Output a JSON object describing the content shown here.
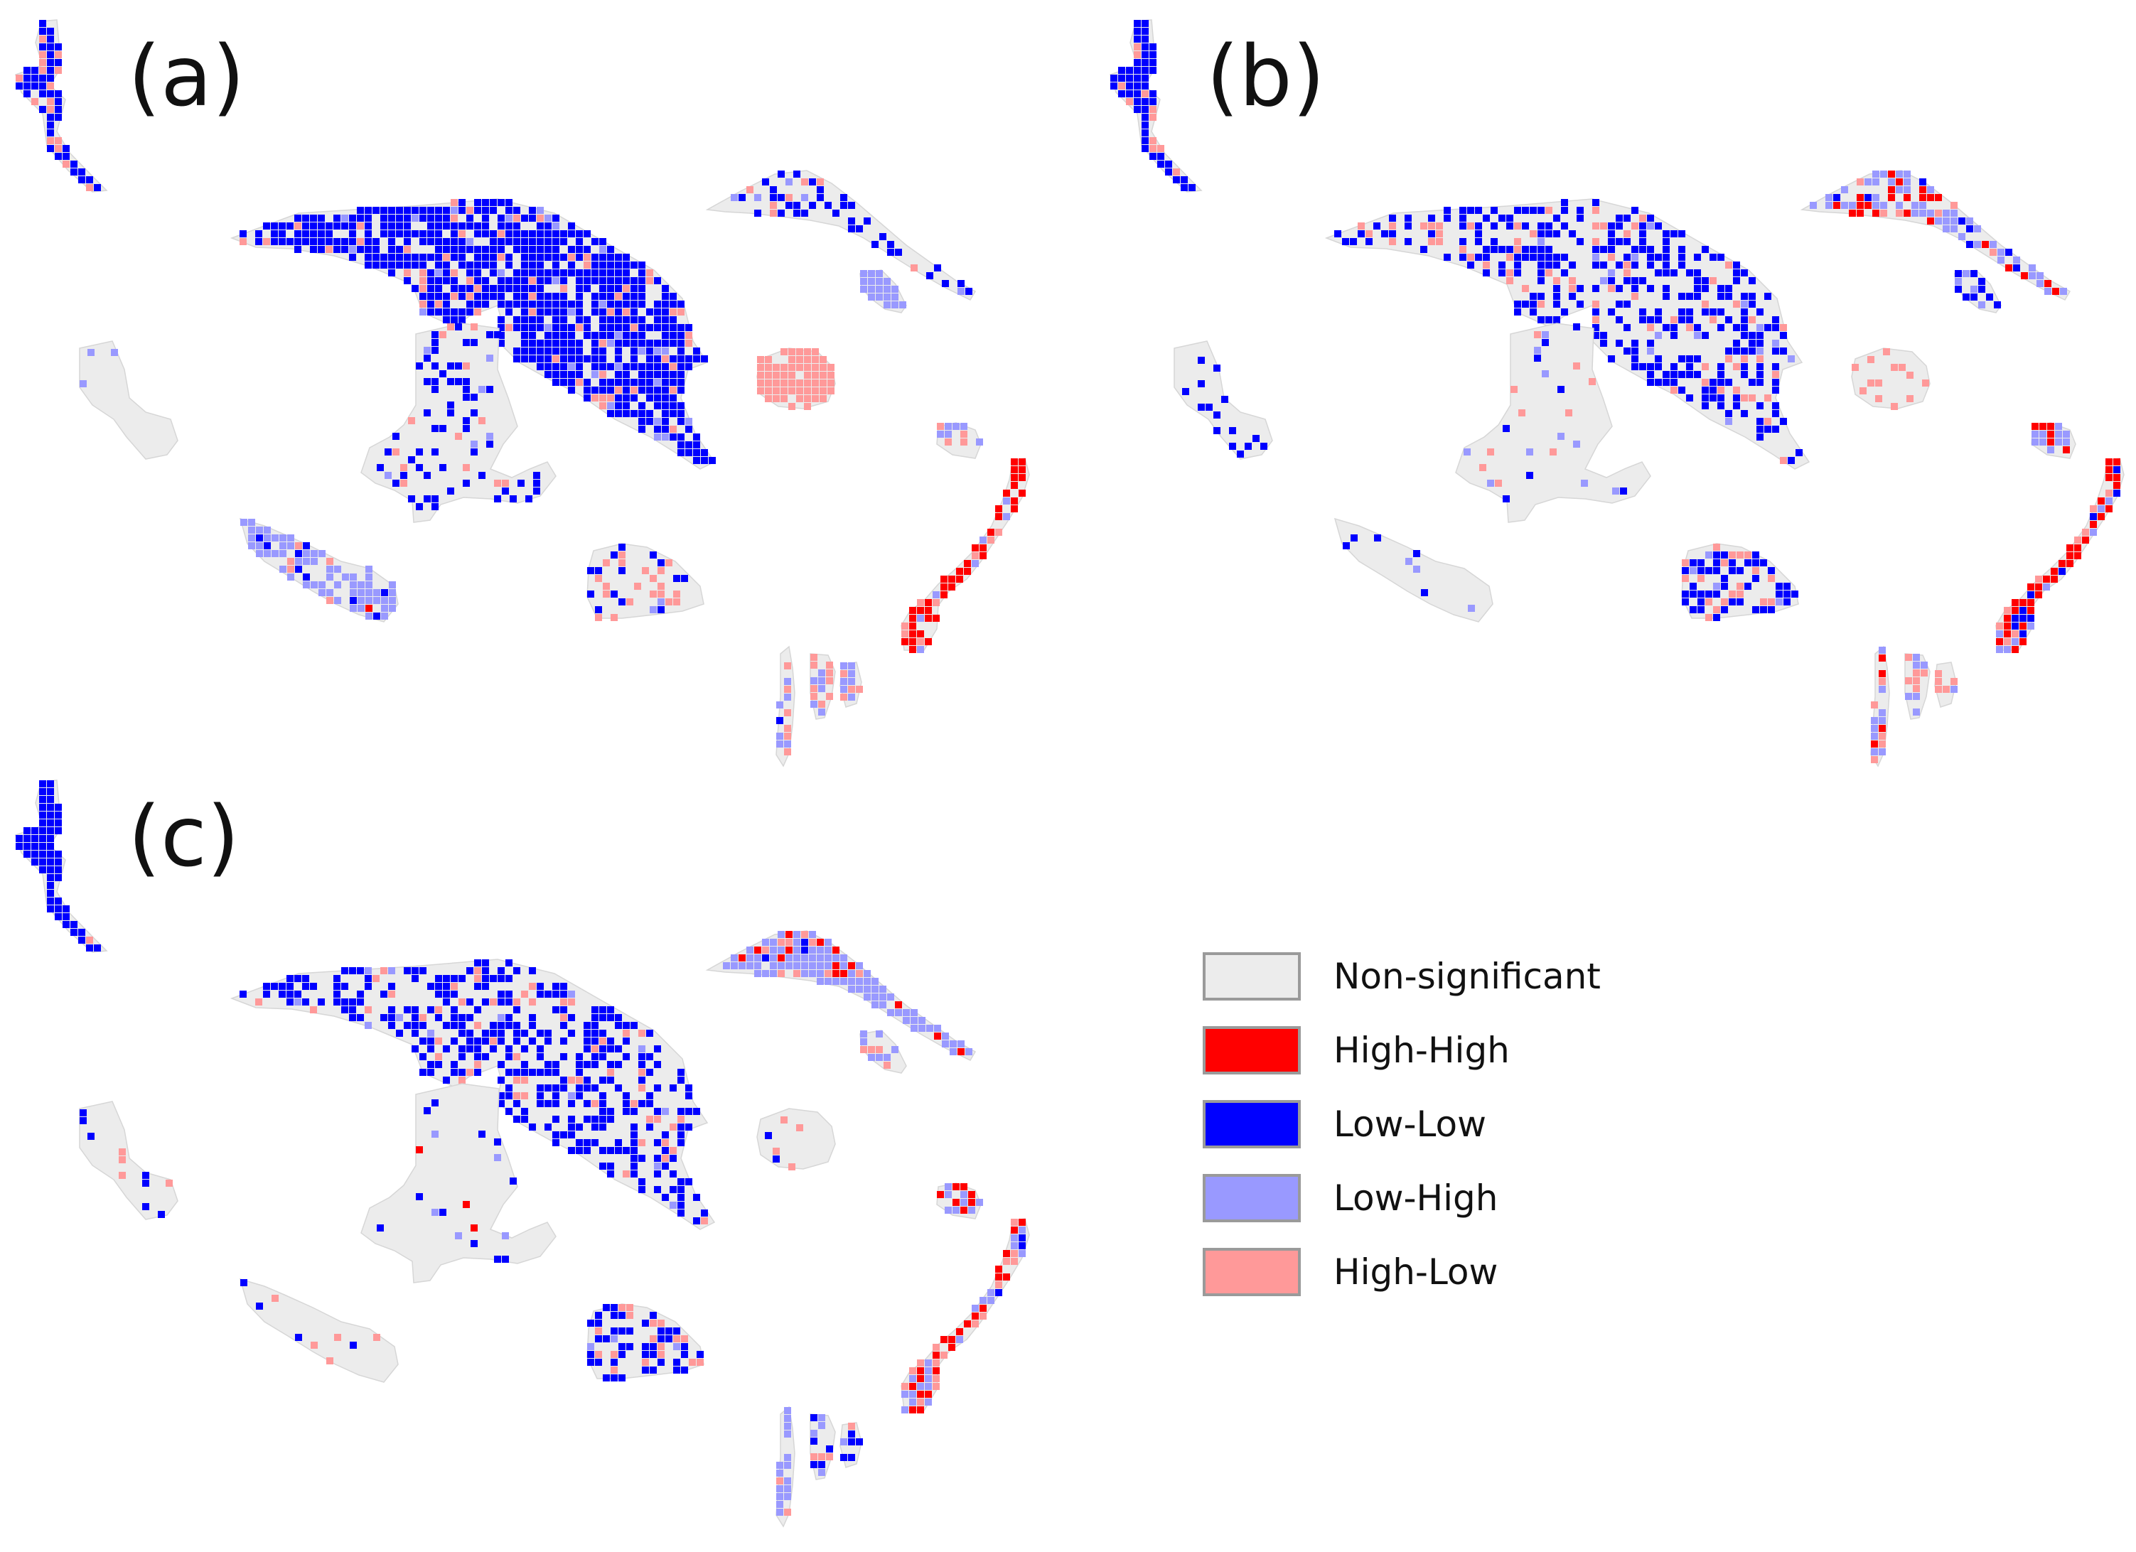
{
  "panels": [
    {
      "label": "(a)",
      "scenario": "a"
    },
    {
      "label": "(b)",
      "scenario": "b"
    },
    {
      "label": "(c)",
      "scenario": "c"
    }
  ],
  "legend": {
    "items": [
      {
        "label": "Non-significant",
        "color": "#ececec"
      },
      {
        "label": "High-High",
        "color": "#ff0000"
      },
      {
        "label": "Low-Low",
        "color": "#0000ff"
      },
      {
        "label": "Low-High",
        "color": "#9999ff"
      },
      {
        "label": "High-Low",
        "color": "#ff9999"
      }
    ]
  },
  "colors": {
    "non_significant": "#ececec",
    "high_high": "#ff0000",
    "low_low": "#0000ff",
    "low_high": "#9999ff",
    "high_low": "#ff9999",
    "swatch_border": "#9a9a9a"
  }
}
